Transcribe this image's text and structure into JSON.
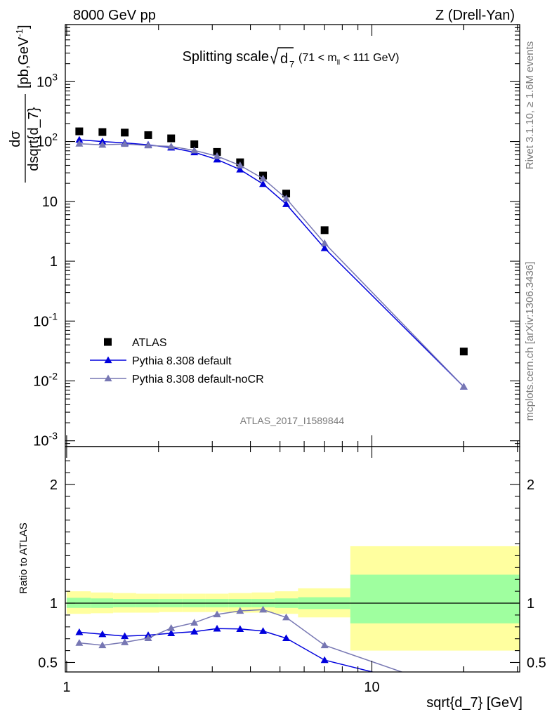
{
  "header": {
    "left": "8000 GeV pp",
    "right": "Z (Drell-Yan)"
  },
  "title": {
    "main": "Splitting scale",
    "var": "d",
    "sub": "7",
    "cut": "(71 < m",
    "cut_sub": "ll",
    "cut_end": " < 111 GeV)"
  },
  "side_label_top": "Rivet 3.1.10, ≥ 1.6M events",
  "side_label_bottom": "mcplots.cern.ch [arXiv:1306.3436]",
  "analysis_label": "ATLAS_2017_I1589844",
  "ylabel_top": {
    "num": "dσ",
    "den": "dsqrt{d_7}",
    "units": "[pb,GeV",
    "units_sup": "-1",
    "units_end": "]"
  },
  "ylabel_bottom": "Ratio to ATLAS",
  "xlabel": "sqrt{d_7} [GeV]",
  "legend": [
    {
      "label": "ATLAS",
      "marker": "square",
      "color": "#000000"
    },
    {
      "label": "Pythia 8.308 default",
      "marker": "triangle",
      "color": "#0000dd"
    },
    {
      "label": "Pythia 8.308 default-noCR",
      "marker": "triangle",
      "color": "#7777b3"
    }
  ],
  "chart_data": [
    {
      "type": "scatter",
      "panel": "main",
      "xscale": "log",
      "yscale": "log",
      "xlim": [
        0.99,
        30.5
      ],
      "ylim": [
        0.0008,
        9000
      ],
      "xlabel": "sqrt{d_7} [GeV]",
      "ylabel": "dσ/dsqrt{d_7} [pb,GeV^-1]",
      "x_tick_labels": [
        "1",
        "10"
      ],
      "y_tick_labels": [
        {
          "base": "10",
          "exp": "-3",
          "value": 0.001
        },
        {
          "base": "10",
          "exp": "-2",
          "value": 0.01
        },
        {
          "base": "10",
          "exp": "-1",
          "value": 0.1
        },
        {
          "base": "1",
          "exp": "",
          "value": 1
        },
        {
          "base": "10",
          "exp": "",
          "value": 10
        },
        {
          "base": "10",
          "exp": "2",
          "value": 100
        },
        {
          "base": "10",
          "exp": "3",
          "value": 1000
        }
      ],
      "series": [
        {
          "name": "ATLAS",
          "x": [
            1.1,
            1.31,
            1.55,
            1.85,
            2.2,
            2.62,
            3.11,
            3.7,
            4.4,
            5.24,
            7.0,
            20.0
          ],
          "y": [
            148,
            144,
            141,
            128,
            113,
            90,
            67,
            45,
            27,
            13.5,
            3.3,
            0.031
          ]
        },
        {
          "name": "Pythia 8.308 default",
          "x": [
            1.1,
            1.31,
            1.55,
            1.85,
            2.2,
            2.62,
            3.11,
            3.7,
            4.4,
            5.24,
            7.0,
            20.0
          ],
          "y": [
            107,
            100,
            95,
            88,
            79,
            66,
            50,
            34,
            19.5,
            9.0,
            1.65,
            0.008
          ]
        },
        {
          "name": "Pythia 8.308 default-noCR",
          "x": [
            1.1,
            1.31,
            1.55,
            1.85,
            2.2,
            2.62,
            3.11,
            3.7,
            4.4,
            5.24,
            7.0,
            20.0
          ],
          "y": [
            92,
            88,
            91,
            86,
            83,
            71,
            57,
            40,
            24,
            11.2,
            2.0,
            0.008
          ]
        }
      ]
    },
    {
      "type": "line",
      "panel": "ratio",
      "xscale": "log",
      "xlim": [
        0.99,
        30.5
      ],
      "ylim": [
        0.42,
        2.32
      ],
      "ylabel": "Ratio to ATLAS",
      "y_tick_labels": [
        "0.5",
        "1",
        "2"
      ],
      "reference_line": 1,
      "bands": {
        "edges": [
          1.0,
          1.2,
          1.42,
          1.69,
          2.01,
          2.39,
          2.85,
          3.39,
          4.04,
          4.81,
          5.73,
          8.5,
          30.5
        ],
        "stat_sys_outer": [
          [
            0.91,
            1.1
          ],
          [
            0.915,
            1.09
          ],
          [
            0.92,
            1.085
          ],
          [
            0.92,
            1.08
          ],
          [
            0.925,
            1.08
          ],
          [
            0.925,
            1.08
          ],
          [
            0.925,
            1.08
          ],
          [
            0.92,
            1.085
          ],
          [
            0.92,
            1.09
          ],
          [
            0.91,
            1.1
          ],
          [
            0.88,
            1.125
          ],
          [
            0.6,
            1.48
          ]
        ],
        "stat_inner": [
          [
            0.96,
            1.045
          ],
          [
            0.96,
            1.04
          ],
          [
            0.965,
            1.035
          ],
          [
            0.965,
            1.035
          ],
          [
            0.965,
            1.035
          ],
          [
            0.965,
            1.035
          ],
          [
            0.965,
            1.035
          ],
          [
            0.965,
            1.035
          ],
          [
            0.965,
            1.035
          ],
          [
            0.96,
            1.04
          ],
          [
            0.95,
            1.05
          ],
          [
            0.83,
            1.24
          ]
        ],
        "colors": {
          "outer": "#ffff9f",
          "inner": "#9fff9f"
        }
      },
      "series": [
        {
          "name": "Pythia 8.308 default",
          "x": [
            1.1,
            1.31,
            1.55,
            1.85,
            2.2,
            2.62,
            3.11,
            3.7,
            4.4,
            5.24,
            7.0,
            10.8
          ],
          "y": [
            0.755,
            0.738,
            0.722,
            0.73,
            0.746,
            0.76,
            0.785,
            0.782,
            0.765,
            0.705,
            0.52,
            0.4
          ]
        },
        {
          "name": "Pythia 8.308 default-noCR",
          "x": [
            1.1,
            1.31,
            1.55,
            1.85,
            2.2,
            2.62,
            3.11,
            3.7,
            4.4,
            5.24,
            7.0,
            13.2
          ],
          "y": [
            0.665,
            0.645,
            0.67,
            0.705,
            0.79,
            0.835,
            0.905,
            0.935,
            0.945,
            0.88,
            0.645,
            0.4
          ]
        }
      ]
    }
  ]
}
